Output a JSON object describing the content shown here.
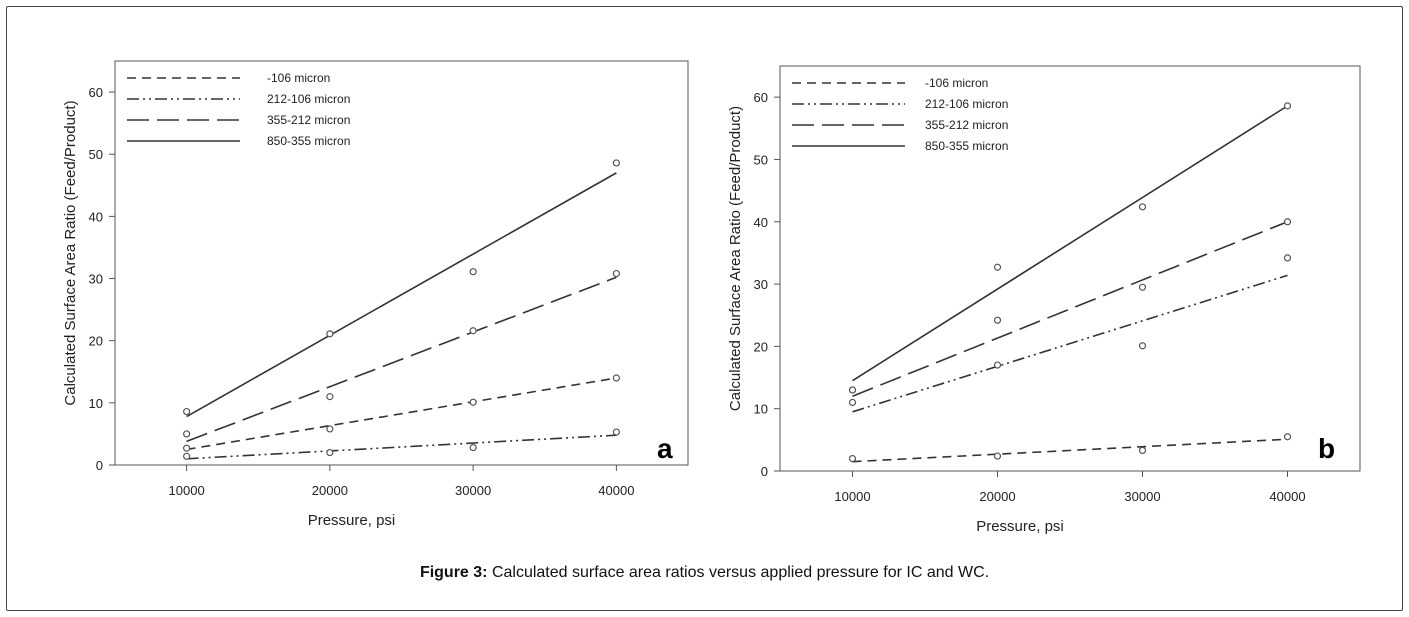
{
  "figure": {
    "caption_label": "Figure 3:",
    "caption_text": " Calculated surface area ratios versus applied pressure for IC and WC."
  },
  "styles": {
    "-106 micron": "short-dash",
    "212-106 micron": "dash-dot-dot",
    "355-212 micron": "long-dash",
    "850-355 micron": "solid",
    "line_color": "#333333",
    "marker_color": "#555555"
  },
  "chart_data": [
    {
      "type": "scatter",
      "panel_label": "a",
      "xlabel": "Pressure, psi",
      "ylabel": "Calculated Surface Area Ratio (Feed/Product)",
      "xlim": [
        5000,
        45000
      ],
      "ylim": [
        0,
        65
      ],
      "xticks": [
        10000,
        20000,
        30000,
        40000
      ],
      "yticks": [
        0,
        10,
        20,
        30,
        40,
        50,
        60
      ],
      "legend_position": "top-left",
      "grid": false,
      "series": [
        {
          "name": "-106 micron",
          "x": [
            10000,
            20000,
            30000,
            40000
          ],
          "y": [
            2.7,
            5.8,
            10.1,
            14.0
          ],
          "fit": [
            [
              10000,
              2.5
            ],
            [
              40000,
              14.0
            ]
          ]
        },
        {
          "name": "212-106 micron",
          "x": [
            10000,
            20000,
            30000,
            40000
          ],
          "y": [
            1.4,
            2.0,
            2.8,
            5.3
          ],
          "fit": [
            [
              10000,
              1.0
            ],
            [
              40000,
              4.8
            ]
          ]
        },
        {
          "name": "355-212 micron",
          "x": [
            10000,
            20000,
            30000,
            40000
          ],
          "y": [
            5.0,
            11.0,
            21.6,
            30.8
          ],
          "fit": [
            [
              10000,
              3.8
            ],
            [
              40000,
              30.2
            ]
          ]
        },
        {
          "name": "850-355 micron",
          "x": [
            10000,
            20000,
            30000,
            40000
          ],
          "y": [
            8.6,
            21.1,
            31.1,
            48.6
          ],
          "fit": [
            [
              10000,
              7.8
            ],
            [
              40000,
              47.0
            ]
          ]
        }
      ]
    },
    {
      "type": "scatter",
      "panel_label": "b",
      "xlabel": "Pressure, psi",
      "ylabel": "Calculated Surface Area Ratio (Feed/Product)",
      "xlim": [
        5000,
        45000
      ],
      "ylim": [
        0,
        65
      ],
      "xticks": [
        10000,
        20000,
        30000,
        40000
      ],
      "yticks": [
        0,
        10,
        20,
        30,
        40,
        50,
        60
      ],
      "legend_position": "top-left",
      "grid": false,
      "series": [
        {
          "name": "-106 micron",
          "x": [
            10000,
            20000,
            30000,
            40000
          ],
          "y": [
            2.0,
            2.4,
            3.3,
            5.5
          ],
          "fit": [
            [
              10000,
              1.5
            ],
            [
              40000,
              5.1
            ]
          ]
        },
        {
          "name": "212-106 micron",
          "x": [
            10000,
            20000,
            30000,
            40000
          ],
          "y": [
            11.0,
            17.0,
            20.1,
            34.2
          ],
          "fit": [
            [
              10000,
              9.5
            ],
            [
              40000,
              31.4
            ]
          ]
        },
        {
          "name": "355-212 micron",
          "x": [
            10000,
            20000,
            30000,
            40000
          ],
          "y": [
            13.0,
            24.2,
            29.5,
            40.0
          ],
          "fit": [
            [
              10000,
              12.0
            ],
            [
              40000,
              40.0
            ]
          ]
        },
        {
          "name": "850-355 micron",
          "x": [
            10000,
            20000,
            30000,
            40000
          ],
          "y": [
            13.0,
            32.7,
            42.4,
            58.6
          ],
          "fit": [
            [
              10000,
              14.5
            ],
            [
              40000,
              58.6
            ]
          ]
        }
      ]
    }
  ]
}
